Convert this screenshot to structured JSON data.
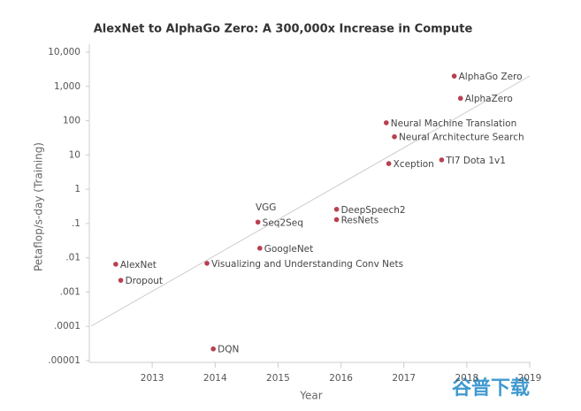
{
  "chart_data": {
    "type": "scatter",
    "title": "AlexNet to AlphaGo Zero: A 300,000x Increase in Compute",
    "x_label": "Year",
    "y_label": "Petaflop/s-day (Training)",
    "y_log": true,
    "color": "#b8404f",
    "labels": [
      "AlexNet",
      "Dropout",
      "DQN",
      "Visualizing and Understanding Conv Nets",
      "GoogleNet",
      "Seq2Seq",
      "VGG",
      "DeepSpeech2",
      "ResNets",
      "Neural Machine Translation",
      "Neural Architecture Search",
      "Xception",
      "TI7 Dota 1v1",
      "AlphaGo Zero",
      "AlphaZero"
    ],
    "x": [
      2012.42,
      2012.5,
      2013.97,
      2013.87,
      2014.71,
      2014.68,
      2014.67,
      2015.93,
      2015.93,
      2016.72,
      2016.85,
      2016.76,
      2017.6,
      2017.8,
      2017.9
    ],
    "values": [
      0.0065,
      0.0022,
      2.2e-05,
      0.0069,
      0.019,
      0.11,
      0.1,
      0.26,
      0.13,
      87,
      34,
      5.6,
      7.2,
      2000,
      450
    ],
    "xlim": [
      2012,
      2019
    ],
    "xticks": [
      2013,
      2014,
      2015,
      2016,
      2017,
      2018,
      2019
    ],
    "ylim": [
      1e-05,
      10000
    ],
    "yticks": [
      {
        "value": 10000,
        "label": "10,000"
      },
      {
        "value": 1000,
        "label": "1,000"
      },
      100,
      10,
      1,
      {
        "value": 0.1,
        "label": ".1"
      },
      {
        "value": 0.01,
        "label": ".01"
      },
      {
        "value": 0.001,
        "label": ".001"
      },
      {
        "value": 0.0001,
        "label": ".0001"
      },
      {
        "value": 1e-05,
        "label": ".00001"
      }
    ]
  },
  "watermark": "谷普下载"
}
